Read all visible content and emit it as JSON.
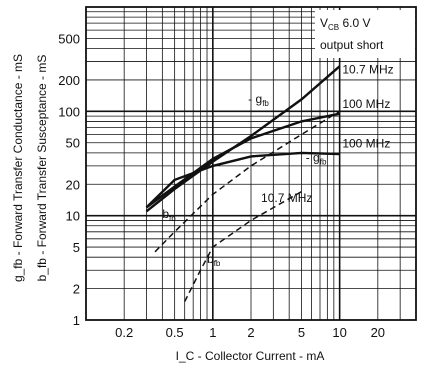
{
  "chart_data": {
    "type": "line",
    "x_scale": "log",
    "y_scale": "log",
    "xlim": [
      0.1,
      40
    ],
    "ylim": [
      1,
      1000
    ],
    "grid": true,
    "xlabel": "I_C - Collector Current - mA",
    "ylabel_1": "g_fb - Forward Transfer Conductance - mS",
    "ylabel_2": "b_fb - Forward Transfer Susceptance - mS",
    "x_ticks": [
      "0.2",
      "0.5",
      "1",
      "2",
      "5",
      "10",
      "20"
    ],
    "x_tick_values": [
      0.2,
      0.5,
      1,
      2,
      5,
      10,
      20
    ],
    "y_ticks": [
      "1",
      "2",
      "5",
      "10",
      "20",
      "50",
      "100",
      "200",
      "500"
    ],
    "y_tick_values": [
      1,
      2,
      5,
      10,
      20,
      50,
      100,
      200,
      500
    ],
    "conditions": {
      "line1_main": "V",
      "line1_sub": "CB",
      "line1_rest": " 6.0 V",
      "line2": "output short"
    },
    "series": [
      {
        "name": "-gfb 10.7 MHz",
        "style": "solid",
        "x": [
          0.3,
          0.5,
          1,
          2,
          5,
          10
        ],
        "y": [
          11,
          18,
          33,
          58,
          130,
          270
        ]
      },
      {
        "name": "-gfb 100 MHz",
        "style": "solid",
        "x": [
          0.3,
          0.5,
          1,
          2,
          5,
          10
        ],
        "y": [
          12,
          19,
          35,
          55,
          80,
          95
        ]
      },
      {
        "name": "-gfb 100 MHz",
        "style": "solid",
        "x": [
          0.3,
          0.5,
          1,
          2,
          5,
          10
        ],
        "y": [
          12,
          22,
          30,
          37,
          40,
          39
        ]
      },
      {
        "name": "bfb 10.7 MHz",
        "style": "dashed",
        "x": [
          0.35,
          0.5,
          1,
          2,
          5,
          10
        ],
        "y": [
          4.5,
          7,
          16,
          30,
          60,
          100
        ]
      },
      {
        "name": "bfb 100 MHz",
        "style": "dashed",
        "x": [
          0.6,
          0.8,
          1,
          2,
          5
        ],
        "y": [
          1.5,
          3,
          5,
          9,
          17
        ]
      }
    ],
    "annotations": [
      {
        "text": "10.7 MHz",
        "x": 10.5,
        "y": 230
      },
      {
        "text": "100 MHz",
        "x": 10.5,
        "y": 108
      },
      {
        "text": "100 MHz",
        "x": 10.5,
        "y": 45
      },
      {
        "text": "10.7 MHz",
        "x": 2.4,
        "y": 13.5
      },
      {
        "text": "- g",
        "sub": "fb",
        "x": 1.9,
        "y": 120
      },
      {
        "text": "- g",
        "sub": "fb",
        "x": 5.4,
        "y": 33
      },
      {
        "text": "b",
        "sub": "fb",
        "x": 0.4,
        "y": 9.5
      },
      {
        "text": "b",
        "sub": "fb",
        "x": 0.9,
        "y": 3.5
      }
    ]
  }
}
